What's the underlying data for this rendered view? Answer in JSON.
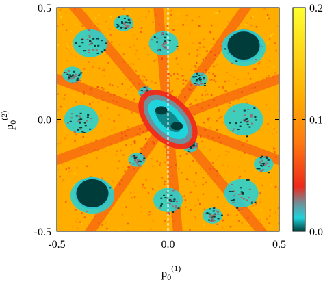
{
  "chart_data": {
    "type": "heatmap",
    "title": "",
    "xlabel": {
      "base": "p",
      "sub": "0",
      "sup": "(1)"
    },
    "ylabel": {
      "base": "p",
      "sub": "0",
      "sup": "(2)"
    },
    "xlim": [
      -0.5,
      0.5
    ],
    "ylim": [
      -0.5,
      0.5
    ],
    "x_ticks": [
      {
        "value": -0.5,
        "label": "-0.5"
      },
      {
        "value": 0.0,
        "label": "0.0"
      },
      {
        "value": 0.5,
        "label": "0.5"
      }
    ],
    "y_ticks": [
      {
        "value": 0.5,
        "label": "0.5"
      },
      {
        "value": 0.0,
        "label": "0.0"
      },
      {
        "value": -0.5,
        "label": "-0.5"
      }
    ],
    "colorbar": {
      "range": [
        0.0,
        0.2
      ],
      "ticks": [
        {
          "value": 0.2,
          "label": "0.2"
        },
        {
          "value": 0.1,
          "label": "0.1"
        },
        {
          "value": 0.0,
          "label": "0.0"
        }
      ],
      "stops": [
        {
          "value": 0.0,
          "color": "#003c3a"
        },
        {
          "value": 0.012,
          "color": "#1fd4dc"
        },
        {
          "value": 0.025,
          "color": "#6f8f9a"
        },
        {
          "value": 0.04,
          "color": "#ee2a1c"
        },
        {
          "value": 0.08,
          "color": "#ff7a10"
        },
        {
          "value": 0.12,
          "color": "#ffae00"
        },
        {
          "value": 0.2,
          "color": "#ffff30"
        }
      ]
    },
    "overlay": {
      "type": "dashed-vertical-line",
      "x": 0.0,
      "color": "#ffffff"
    }
  }
}
